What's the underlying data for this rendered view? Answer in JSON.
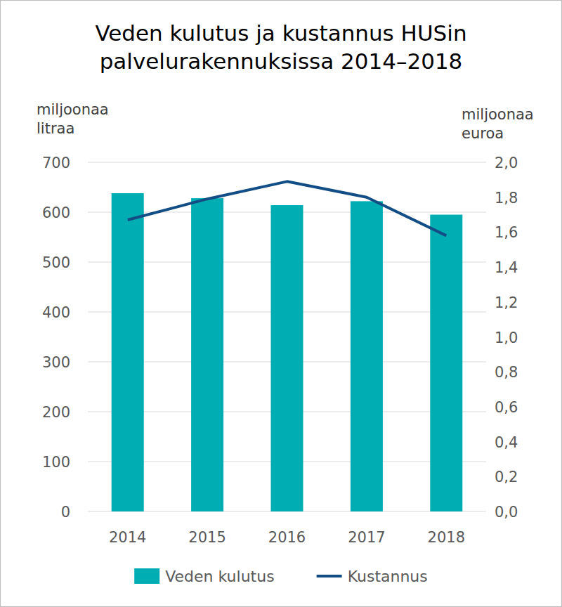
{
  "chart_data": {
    "type": "bar",
    "title": "Veden kulutus ja kustannus HUSin palvelurakennuksissa 2014–2018",
    "y_label": "miljoonaa litraa",
    "y2_label": "miljoonaa euroa",
    "categories": [
      "2014",
      "2015",
      "2016",
      "2017",
      "2018"
    ],
    "series": [
      {
        "name": "Veden kulutus",
        "type": "bar",
        "color": "#00adb2",
        "values": [
          638,
          628,
          614,
          622,
          595
        ]
      },
      {
        "name": "Kustannus",
        "type": "line",
        "color": "#124e85",
        "axis": "y2",
        "values": [
          1.67,
          1.79,
          1.89,
          1.8,
          1.58
        ]
      }
    ],
    "ylim": [
      0,
      700
    ],
    "yticks": [
      0,
      100,
      200,
      300,
      400,
      500,
      600,
      700
    ],
    "y2lim": [
      0,
      2.0
    ],
    "y2ticks": [
      {
        "value": 0,
        "label": "0,0"
      },
      {
        "value": 0.2,
        "label": "0,2"
      },
      {
        "value": 0.4,
        "label": "0,4"
      },
      {
        "value": 0.6,
        "label": "0,6"
      },
      {
        "value": 0.8,
        "label": "0,8"
      },
      {
        "value": 1.0,
        "label": "1,0"
      },
      {
        "value": 1.2,
        "label": "1,2"
      },
      {
        "value": 1.4,
        "label": "1,4"
      },
      {
        "value": 1.6,
        "label": "1,6"
      },
      {
        "value": 1.8,
        "label": "1,8"
      },
      {
        "value": 2.0,
        "label": "2,0"
      }
    ],
    "grid": true,
    "legend": "bottom"
  }
}
